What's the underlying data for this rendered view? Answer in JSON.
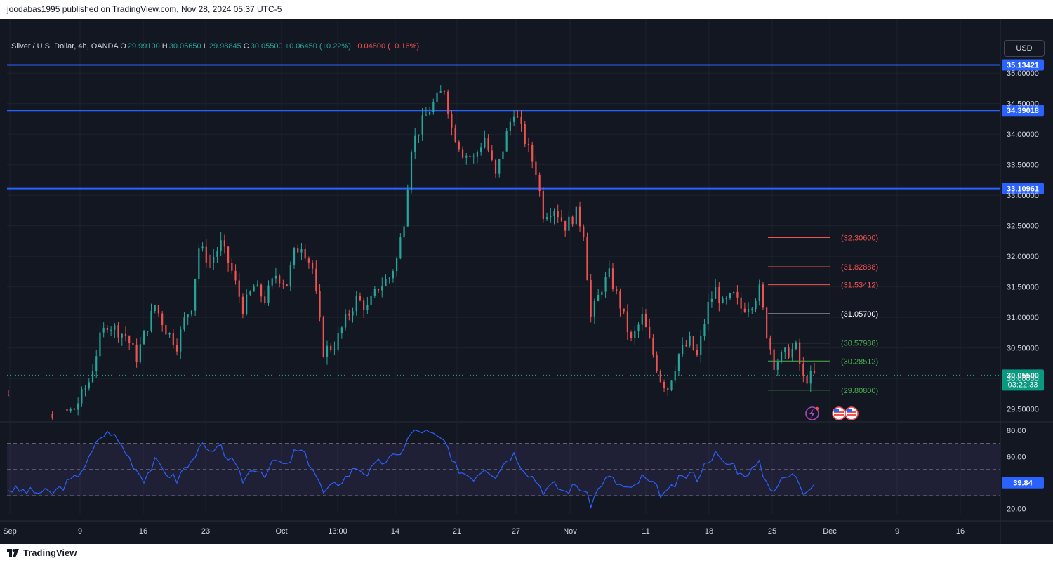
{
  "header": {
    "published_text": "joodabas1995 published on TradingView.com, Nov 28, 2024 05:37 UTC-5"
  },
  "legend": {
    "symbol": "Silver / U.S. Dollar, 4h, OANDA",
    "o_label": "O",
    "o_value": "29.99100",
    "h_label": "H",
    "h_value": "30.05650",
    "l_label": "L",
    "l_value": "29.98845",
    "c_label": "C",
    "c_value": "30.05500",
    "change": "+0.06450 (+0.22%)",
    "spread": "−0.04800 (−0.16%)"
  },
  "currency_button": "USD",
  "footer": {
    "brand": "TradingView",
    "logo_icon": "tradingview-logo-icon"
  },
  "colors": {
    "background": "#131722",
    "grid": "#1e222d",
    "up": "#26a69a",
    "down": "#ef5350",
    "level_line": "#2962ff",
    "rsi_line": "#2962ff",
    "rsi_band": "#7e57c2",
    "text": "#d1d4dc"
  },
  "chart_data": {
    "type": "candlestick",
    "y_ticks": [
      "35.00000",
      "34.50000",
      "34.00000",
      "33.50000",
      "33.00000",
      "32.50000",
      "32.00000",
      "31.50000",
      "31.00000",
      "30.50000",
      "30.00000",
      "29.50000"
    ],
    "ylim": [
      29.3,
      35.45
    ],
    "x_ticks": [
      "Sep",
      "9",
      "16",
      "23",
      "Oct",
      "13:00",
      "14",
      "21",
      "27",
      "Nov",
      "11",
      "18",
      "25",
      "Dec",
      "9",
      "16"
    ],
    "horizontal_levels": [
      {
        "price": 35.13421,
        "label": "35.13421"
      },
      {
        "price": 34.39018,
        "label": "34.39018"
      },
      {
        "price": 33.10961,
        "label": "33.10961"
      }
    ],
    "current_price": {
      "price": 30.055,
      "label": "30.05500",
      "countdown": "03:22:33"
    },
    "target_levels": [
      {
        "price": 32.306,
        "label": "(32.30600)",
        "color": "#ef5350"
      },
      {
        "price": 31.82888,
        "label": "(31.82888)",
        "color": "#ef5350"
      },
      {
        "price": 31.53412,
        "label": "(31.53412)",
        "color": "#ef5350"
      },
      {
        "price": 31.057,
        "label": "(31.05700)",
        "color": "#ffffff"
      },
      {
        "price": 30.57988,
        "label": "(30.57988)",
        "color": "#4caf50"
      },
      {
        "price": 30.28512,
        "label": "(30.28512)",
        "color": "#4caf50"
      },
      {
        "price": 29.808,
        "label": "(29.80800)",
        "color": "#4caf50"
      }
    ],
    "price_path": [
      [
        0,
        29.73
      ],
      [
        1,
        29.0
      ],
      [
        7,
        29.2
      ],
      [
        18,
        29.5
      ],
      [
        22,
        29.95
      ],
      [
        25,
        30.65
      ],
      [
        27,
        30.9
      ],
      [
        32,
        30.7
      ],
      [
        35,
        30.35
      ],
      [
        37,
        30.7
      ],
      [
        40,
        31.2
      ],
      [
        43,
        30.8
      ],
      [
        46,
        30.55
      ],
      [
        48,
        30.95
      ],
      [
        50,
        31.2
      ],
      [
        52,
        32.15
      ],
      [
        55,
        31.9
      ],
      [
        58,
        32.2
      ],
      [
        61,
        31.75
      ],
      [
        64,
        31.15
      ],
      [
        67,
        31.5
      ],
      [
        70,
        31.3
      ],
      [
        73,
        31.7
      ],
      [
        76,
        31.55
      ],
      [
        78,
        32.05
      ],
      [
        80,
        32.2
      ],
      [
        83,
        31.8
      ],
      [
        86,
        30.45
      ],
      [
        89,
        30.55
      ],
      [
        92,
        30.95
      ],
      [
        95,
        31.3
      ],
      [
        98,
        31.15
      ],
      [
        101,
        31.5
      ],
      [
        104,
        31.65
      ],
      [
        106,
        31.95
      ],
      [
        108,
        32.6
      ],
      [
        110,
        33.8
      ],
      [
        113,
        34.2
      ],
      [
        116,
        34.5
      ],
      [
        119,
        34.75
      ],
      [
        121,
        34.1
      ],
      [
        124,
        33.7
      ],
      [
        127,
        33.6
      ],
      [
        130,
        33.95
      ],
      [
        133,
        33.3
      ],
      [
        136,
        34.0
      ],
      [
        138,
        34.4
      ],
      [
        141,
        33.9
      ],
      [
        144,
        33.4
      ],
      [
        146,
        32.7
      ],
      [
        149,
        32.8
      ],
      [
        152,
        32.5
      ],
      [
        155,
        32.7
      ],
      [
        157,
        32.4
      ],
      [
        159,
        31.0
      ],
      [
        162,
        31.5
      ],
      [
        164,
        31.7
      ],
      [
        167,
        31.2
      ],
      [
        170,
        30.6
      ],
      [
        173,
        31.0
      ],
      [
        176,
        30.4
      ],
      [
        178,
        30.0
      ],
      [
        180,
        29.85
      ],
      [
        183,
        30.4
      ],
      [
        186,
        30.6
      ],
      [
        188,
        30.35
      ],
      [
        191,
        31.2
      ],
      [
        193,
        31.45
      ],
      [
        195,
        31.2
      ],
      [
        198,
        31.35
      ],
      [
        200,
        31.15
      ],
      [
        203,
        31.25
      ],
      [
        205,
        31.45
      ],
      [
        207,
        30.75
      ],
      [
        209,
        30.25
      ],
      [
        212,
        30.4
      ],
      [
        215,
        30.5
      ],
      [
        217,
        29.98
      ],
      [
        220,
        30.055
      ]
    ],
    "rsi": {
      "value_label": "39.84",
      "y_ticks": [
        "80.00",
        "60.00",
        "40.00",
        "20.00"
      ],
      "ylim": [
        16,
        86
      ],
      "levels": [
        70,
        50,
        30
      ],
      "path": [
        [
          0,
          35
        ],
        [
          6,
          33
        ],
        [
          12,
          32
        ],
        [
          18,
          43
        ],
        [
          22,
          58
        ],
        [
          25,
          75
        ],
        [
          28,
          79
        ],
        [
          31,
          68
        ],
        [
          35,
          50
        ],
        [
          37,
          43
        ],
        [
          40,
          56
        ],
        [
          43,
          48
        ],
        [
          46,
          42
        ],
        [
          48,
          51
        ],
        [
          50,
          55
        ],
        [
          52,
          70
        ],
        [
          55,
          62
        ],
        [
          58,
          66
        ],
        [
          61,
          56
        ],
        [
          64,
          42
        ],
        [
          67,
          52
        ],
        [
          70,
          47
        ],
        [
          73,
          57
        ],
        [
          76,
          52
        ],
        [
          78,
          63
        ],
        [
          80,
          64
        ],
        [
          83,
          52
        ],
        [
          86,
          32
        ],
        [
          89,
          38
        ],
        [
          92,
          44
        ],
        [
          95,
          52
        ],
        [
          98,
          47
        ],
        [
          101,
          55
        ],
        [
          104,
          58
        ],
        [
          106,
          60
        ],
        [
          108,
          68
        ],
        [
          110,
          78
        ],
        [
          113,
          80
        ],
        [
          116,
          76
        ],
        [
          119,
          72
        ],
        [
          121,
          55
        ],
        [
          124,
          48
        ],
        [
          127,
          44
        ],
        [
          130,
          52
        ],
        [
          133,
          46
        ],
        [
          136,
          58
        ],
        [
          138,
          62
        ],
        [
          141,
          50
        ],
        [
          144,
          42
        ],
        [
          146,
          34
        ],
        [
          149,
          38
        ],
        [
          152,
          33
        ],
        [
          155,
          38
        ],
        [
          157,
          34
        ],
        [
          159,
          24
        ],
        [
          162,
          40
        ],
        [
          164,
          44
        ],
        [
          167,
          38
        ],
        [
          170,
          34
        ],
        [
          173,
          44
        ],
        [
          176,
          38
        ],
        [
          178,
          32
        ],
        [
          180,
          32
        ],
        [
          183,
          42
        ],
        [
          186,
          47
        ],
        [
          188,
          44
        ],
        [
          191,
          58
        ],
        [
          193,
          62
        ],
        [
          195,
          55
        ],
        [
          198,
          54
        ],
        [
          200,
          46
        ],
        [
          203,
          50
        ],
        [
          205,
          54
        ],
        [
          207,
          40
        ],
        [
          209,
          35
        ],
        [
          212,
          44
        ],
        [
          215,
          46
        ],
        [
          217,
          34
        ],
        [
          220,
          39.84
        ]
      ]
    }
  }
}
